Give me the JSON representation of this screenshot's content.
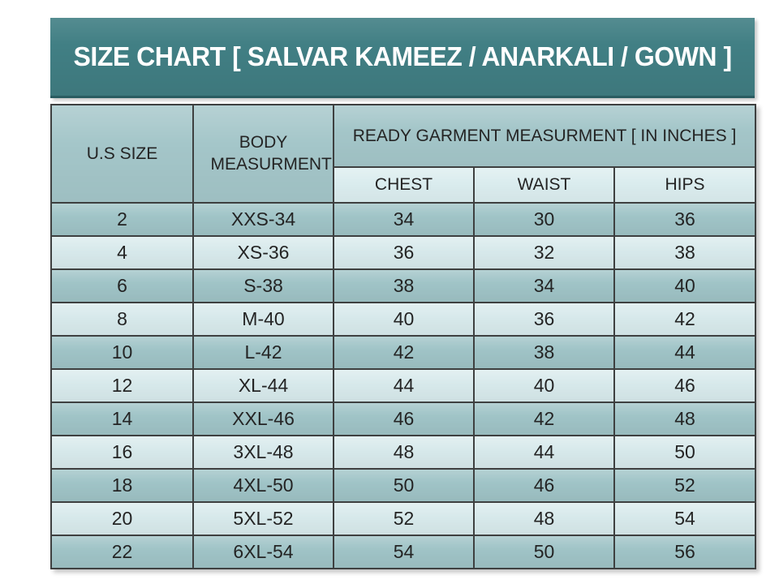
{
  "header": {
    "title": "SIZE CHART [ SALVAR KAMEEZ / ANARKALI / GOWN ]"
  },
  "table": {
    "us_size_header": "U.S SIZE",
    "body_header": "BODY MEASURMENT",
    "group_header": "READY GARMENT MEASURMENT [ IN INCHES ]",
    "sub_headers": {
      "chest": "CHEST",
      "waist": "WAIST",
      "hips": "HIPS"
    }
  },
  "chart_data": {
    "type": "table",
    "title": "SIZE CHART [ SALVAR KAMEEZ / ANARKALI / GOWN ]",
    "columns": [
      "U.S SIZE",
      "BODY MEASURMENT",
      "CHEST",
      "WAIST",
      "HIPS"
    ],
    "group_header": "READY GARMENT MEASURMENT [ IN INCHES ]",
    "group_spans": [
      "CHEST",
      "WAIST",
      "HIPS"
    ],
    "rows": [
      [
        "2",
        "XXS-34",
        "34",
        "30",
        "36"
      ],
      [
        "4",
        "XS-36",
        "36",
        "32",
        "38"
      ],
      [
        "6",
        "S-38",
        "38",
        "34",
        "40"
      ],
      [
        "8",
        "M-40",
        "40",
        "36",
        "42"
      ],
      [
        "10",
        "L-42",
        "42",
        "38",
        "44"
      ],
      [
        "12",
        "XL-44",
        "44",
        "40",
        "46"
      ],
      [
        "14",
        "XXL-46",
        "46",
        "42",
        "48"
      ],
      [
        "16",
        "3XL-48",
        "48",
        "44",
        "50"
      ],
      [
        "18",
        "4XL-50",
        "50",
        "46",
        "52"
      ],
      [
        "20",
        "5XL-52",
        "52",
        "48",
        "54"
      ],
      [
        "22",
        "6XL-54",
        "54",
        "50",
        "56"
      ]
    ]
  },
  "colors": {
    "title_teal": "#417f84",
    "title_edge": "#2a5c61",
    "title_text": "#ffffff",
    "header_cell": "#a4c6c9",
    "subheader_cell": "#daecee",
    "row_dark": "#a0c4c7",
    "row_light": "#d7e9eb",
    "grid_line": "#3e4040",
    "text_dark": "#242424",
    "page_background": "#ffffff"
  }
}
